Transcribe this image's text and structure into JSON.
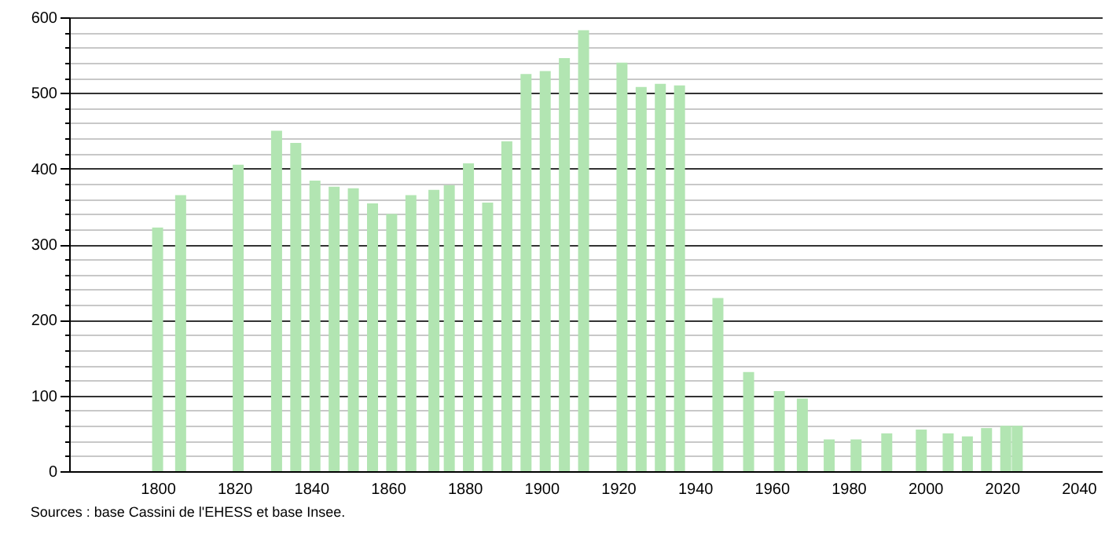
{
  "chart_data": {
    "type": "bar",
    "x": [
      1800,
      1806,
      1821,
      1831,
      1836,
      1841,
      1846,
      1851,
      1856,
      1861,
      1866,
      1872,
      1876,
      1881,
      1886,
      1891,
      1896,
      1901,
      1906,
      1911,
      1921,
      1926,
      1931,
      1936,
      1946,
      1954,
      1962,
      1968,
      1975,
      1982,
      1990,
      1999,
      2006,
      2011,
      2016,
      2021,
      2024
    ],
    "values": [
      322,
      365,
      405,
      450,
      434,
      384,
      376,
      374,
      354,
      340,
      365,
      372,
      378,
      407,
      355,
      436,
      525,
      529,
      546,
      583,
      540,
      508,
      512,
      510,
      229,
      131,
      106,
      96,
      42,
      42,
      50,
      55,
      50,
      46,
      57,
      60,
      60
    ],
    "color": "#b2e5b2",
    "xlim": [
      1779,
      2044
    ],
    "xticks": [
      1800,
      1820,
      1840,
      1860,
      1880,
      1900,
      1920,
      1940,
      1960,
      1980,
      2000,
      2020,
      2040
    ],
    "ylim": [
      0,
      600
    ],
    "yticks": [
      0,
      {
        "value": 20,
        "label": null
      },
      {
        "value": 40,
        "label": null
      },
      {
        "value": 60,
        "label": null
      },
      {
        "value": 80,
        "label": null
      },
      100,
      {
        "value": 120,
        "label": null
      },
      {
        "value": 140,
        "label": null
      },
      {
        "value": 160,
        "label": null
      },
      {
        "value": 180,
        "label": null
      },
      200,
      {
        "value": 220,
        "label": null
      },
      {
        "value": 240,
        "label": null
      },
      {
        "value": 260,
        "label": null
      },
      {
        "value": 280,
        "label": null
      },
      300,
      {
        "value": 320,
        "label": null
      },
      {
        "value": 340,
        "label": null
      },
      {
        "value": 360,
        "label": null
      },
      {
        "value": 380,
        "label": null
      },
      400,
      {
        "value": 420,
        "label": null
      },
      {
        "value": 440,
        "label": null
      },
      {
        "value": 460,
        "label": null
      },
      {
        "value": 480,
        "label": null
      },
      500,
      {
        "value": 520,
        "label": null
      },
      {
        "value": 540,
        "label": null
      },
      {
        "value": 560,
        "label": null
      },
      {
        "value": 580,
        "label": null
      },
      600
    ],
    "grid": "y",
    "annotations": [
      "Sources : base Cassini de l'EHESS et base Insee."
    ]
  }
}
